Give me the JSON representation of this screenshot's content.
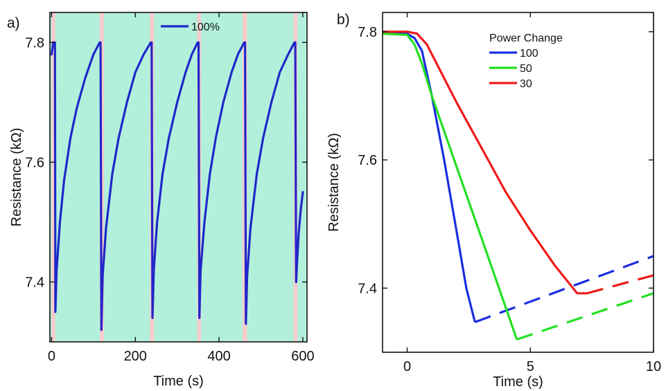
{
  "chart_data": [
    {
      "type": "line",
      "panel_label": "a)",
      "xlabel": "Time (s)",
      "ylabel": "Resistance (kΩ)",
      "xlim": [
        -4,
        610
      ],
      "ylim": [
        7.3,
        7.85
      ],
      "xticks": [
        0,
        200,
        400,
        600
      ],
      "xtick_labels": [
        "0",
        "200",
        "400",
        "600"
      ],
      "yticks": [
        7.4,
        7.6,
        7.8
      ],
      "ytick_labels": [
        "7.4",
        "7.6",
        "7.8"
      ],
      "legend": {
        "position": "top-center",
        "entries": [
          "100%"
        ]
      },
      "background_color": "#b3f0dc",
      "shaded_color": "#f6cccc",
      "shaded_bands": [
        [
          0,
          9
        ],
        [
          115,
          125
        ],
        [
          235,
          245
        ],
        [
          348,
          357
        ],
        [
          456,
          467
        ],
        [
          578,
          587
        ]
      ],
      "series": [
        {
          "name": "100%",
          "color": "#2028c8",
          "points": [
            [
              0,
              7.78
            ],
            [
              4,
              7.8
            ],
            [
              8,
              7.8
            ],
            [
              9,
              7.35
            ],
            [
              12,
              7.42
            ],
            [
              20,
              7.5
            ],
            [
              30,
              7.57
            ],
            [
              45,
              7.64
            ],
            [
              60,
              7.69
            ],
            [
              80,
              7.74
            ],
            [
              100,
              7.78
            ],
            [
              115,
              7.8
            ],
            [
              117,
              7.8
            ],
            [
              119,
              7.32
            ],
            [
              122,
              7.41
            ],
            [
              130,
              7.49
            ],
            [
              145,
              7.58
            ],
            [
              160,
              7.64
            ],
            [
              180,
              7.7
            ],
            [
              200,
              7.75
            ],
            [
              220,
              7.78
            ],
            [
              237,
              7.8
            ],
            [
              239,
              7.8
            ],
            [
              241,
              7.34
            ],
            [
              244,
              7.42
            ],
            [
              252,
              7.5
            ],
            [
              265,
              7.58
            ],
            [
              280,
              7.64
            ],
            [
              300,
              7.7
            ],
            [
              320,
              7.75
            ],
            [
              335,
              7.78
            ],
            [
              349,
              7.8
            ],
            [
              351,
              7.8
            ],
            [
              353,
              7.34
            ],
            [
              356,
              7.42
            ],
            [
              365,
              7.5
            ],
            [
              378,
              7.58
            ],
            [
              392,
              7.64
            ],
            [
              410,
              7.7
            ],
            [
              430,
              7.75
            ],
            [
              445,
              7.78
            ],
            [
              460,
              7.8
            ],
            [
              462,
              7.8
            ],
            [
              464,
              7.33
            ],
            [
              467,
              7.41
            ],
            [
              475,
              7.49
            ],
            [
              490,
              7.58
            ],
            [
              505,
              7.64
            ],
            [
              525,
              7.7
            ],
            [
              545,
              7.75
            ],
            [
              565,
              7.78
            ],
            [
              580,
              7.8
            ],
            [
              582,
              7.8
            ],
            [
              584,
              7.4
            ],
            [
              586,
              7.43
            ],
            [
              590,
              7.48
            ],
            [
              595,
              7.52
            ],
            [
              600,
              7.55
            ]
          ]
        }
      ]
    },
    {
      "type": "line",
      "panel_label": "b)",
      "xlabel": "Time (s)",
      "ylabel": "Resistance (kΩ)",
      "xlim": [
        -1,
        10
      ],
      "ylim": [
        7.3,
        7.83
      ],
      "xticks": [
        0,
        5,
        10
      ],
      "xtick_labels": [
        "0",
        "5",
        "10"
      ],
      "yticks": [
        7.4,
        7.6,
        7.8
      ],
      "ytick_labels": [
        "7.4",
        "7.6",
        "7.8"
      ],
      "legend": {
        "title": "Power Change",
        "position": "top-center",
        "entries": [
          "100",
          "50",
          "30"
        ]
      },
      "series": [
        {
          "name": "100",
          "color": "#1a2ee0",
          "solid": [
            [
              -1,
              7.797
            ],
            [
              0,
              7.797
            ],
            [
              0.3,
              7.79
            ],
            [
              0.6,
              7.77
            ],
            [
              1,
              7.7
            ],
            [
              1.5,
              7.6
            ],
            [
              2,
              7.49
            ],
            [
              2.4,
              7.4
            ],
            [
              2.75,
              7.347
            ]
          ],
          "dashed": [
            [
              2.75,
              7.347
            ],
            [
              10,
              7.45
            ]
          ]
        },
        {
          "name": "50",
          "color": "#22e022",
          "solid": [
            [
              -1,
              7.797
            ],
            [
              0,
              7.795
            ],
            [
              0.3,
              7.78
            ],
            [
              0.6,
              7.75
            ],
            [
              1,
              7.7
            ],
            [
              2,
              7.59
            ],
            [
              3,
              7.48
            ],
            [
              4,
              7.37
            ],
            [
              4.45,
              7.32
            ]
          ],
          "dashed": [
            [
              4.45,
              7.32
            ],
            [
              10,
              7.392
            ]
          ]
        },
        {
          "name": "30",
          "color": "#ee1a1a",
          "solid": [
            [
              -1,
              7.8
            ],
            [
              0,
              7.8
            ],
            [
              0.4,
              7.797
            ],
            [
              0.8,
              7.78
            ],
            [
              1.2,
              7.75
            ],
            [
              2,
              7.69
            ],
            [
              3,
              7.62
            ],
            [
              4,
              7.55
            ],
            [
              5,
              7.49
            ],
            [
              6,
              7.435
            ],
            [
              6.9,
              7.392
            ],
            [
              7.3,
              7.392
            ]
          ],
          "dashed": [
            [
              7.3,
              7.392
            ],
            [
              10,
              7.42
            ]
          ]
        }
      ]
    }
  ]
}
